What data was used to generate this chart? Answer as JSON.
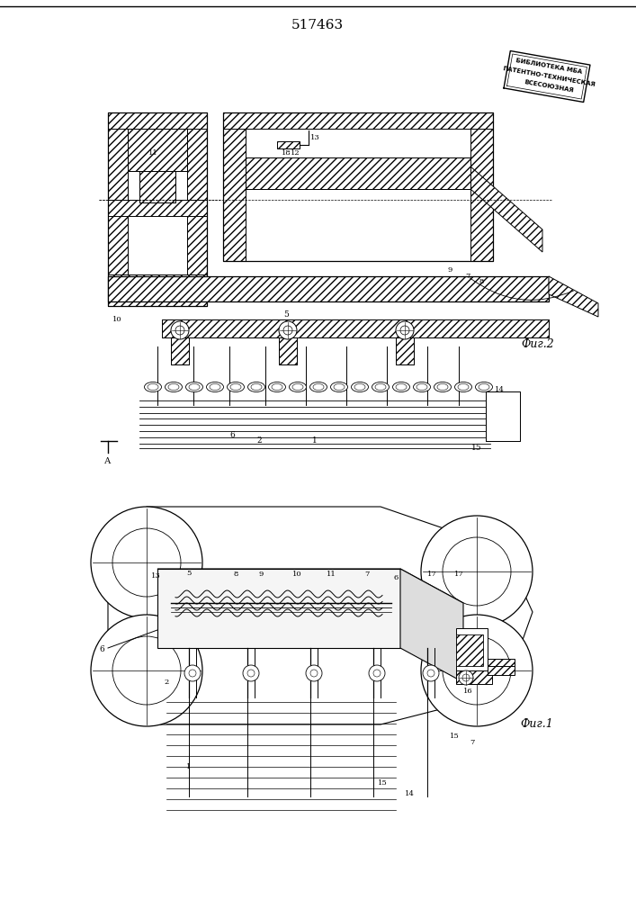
{
  "title": "517463",
  "background_color": "#ffffff",
  "line_color": "#000000",
  "fig2_label": "Фиг.2",
  "fig1_label": "Фиг.1",
  "stamp_lines": [
    "ВСЕСОЮЗНАЯ",
    "ПАТЕНТНО-ТЕХНИЧЕСКАЯ",
    "БИБЛИОТЕКА МБА"
  ]
}
